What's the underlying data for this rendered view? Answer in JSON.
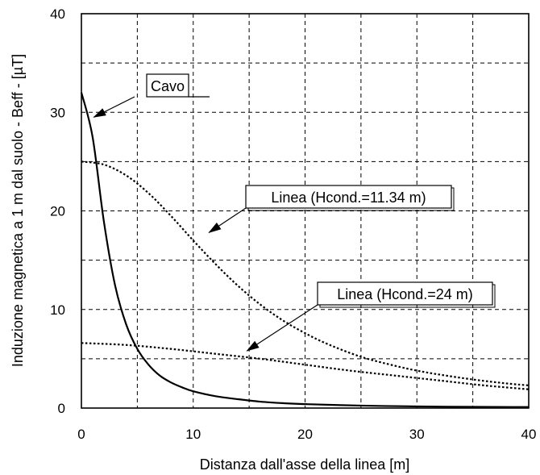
{
  "chart_data": {
    "type": "line",
    "title": "",
    "xlabel": "Distanza dall'asse della linea [m]",
    "ylabel": "Induzione magnetica a 1 m dal suolo - Beff - [µT]",
    "xlim": [
      0,
      40
    ],
    "ylim": [
      0,
      40
    ],
    "x_ticks": [
      0,
      10,
      20,
      30,
      40
    ],
    "y_ticks": [
      0,
      10,
      20,
      30,
      40
    ],
    "x_tick_labels": [
      "0",
      "10",
      "20",
      "30",
      "40"
    ],
    "y_tick_labels": [
      "0",
      "10",
      "20",
      "30",
      "40"
    ],
    "grid": true,
    "grid_step_x": 5,
    "grid_step_y": 5,
    "series": [
      {
        "style": "solid",
        "x": [
          0,
          1,
          2,
          3,
          4,
          5,
          6,
          7,
          8,
          9,
          10,
          12,
          14,
          16,
          18,
          20,
          25,
          30,
          35,
          40
        ],
        "y": [
          32,
          27.5,
          19,
          12.5,
          8.5,
          6.0,
          4.4,
          3.3,
          2.6,
          2.1,
          1.7,
          1.2,
          0.9,
          0.65,
          0.5,
          0.4,
          0.25,
          0.17,
          0.12,
          0.1
        ]
      },
      {
        "style": "dotted",
        "x": [
          0,
          2,
          4,
          6,
          8,
          10,
          12,
          14,
          16,
          18,
          20,
          22,
          25,
          28,
          30,
          32,
          35,
          38,
          40
        ],
        "y": [
          25,
          24.7,
          23.6,
          21.8,
          19.5,
          17.0,
          14.6,
          12.4,
          10.5,
          8.9,
          7.6,
          6.5,
          5.2,
          4.3,
          3.8,
          3.4,
          2.9,
          2.5,
          2.3
        ]
      },
      {
        "style": "dotted",
        "x": [
          0,
          4,
          8,
          12,
          16,
          20,
          24,
          28,
          32,
          36,
          40
        ],
        "y": [
          6.6,
          6.4,
          6.0,
          5.5,
          5.0,
          4.4,
          3.8,
          3.3,
          2.8,
          2.3,
          1.9
        ]
      }
    ],
    "annotations": [
      {
        "text": "Cavo",
        "box": "solid",
        "arrow_to": [
          1.1,
          29.5
        ]
      },
      {
        "text": "Linea (Hcond.=11.34 m)",
        "box": "double",
        "arrow_to": [
          11.4,
          17.8
        ]
      },
      {
        "text": "Linea (Hcond.=24 m)",
        "box": "double",
        "arrow_to": [
          14.8,
          5.8
        ]
      }
    ]
  }
}
